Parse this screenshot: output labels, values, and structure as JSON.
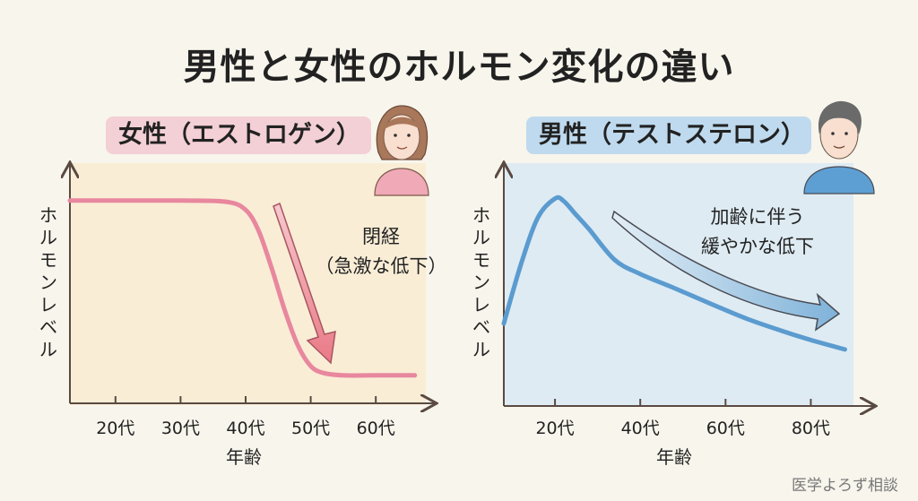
{
  "title": "男性と女性のホルモン変化の違い",
  "credit": "医学よろず相談",
  "colors": {
    "background": "#f8f5ec",
    "female_panel": "#f9edd6",
    "female_line": "#e8879e",
    "female_label": "#f2d0d5",
    "male_panel": "#deebf3",
    "male_line": "#5b9bcf",
    "male_label": "#bfdaee"
  },
  "icons": {
    "female": "woman-avatar-icon",
    "male": "man-avatar-icon"
  },
  "chart_data": [
    {
      "type": "line",
      "title": "女性（エストロゲン）",
      "xlabel": "年齢",
      "ylabel": "ホルモンレベル",
      "tick_labels": [
        "20代",
        "30代",
        "40代",
        "50代",
        "60代"
      ],
      "tick_ages": [
        20,
        30,
        40,
        50,
        60
      ],
      "xlim": [
        13,
        67
      ],
      "ylim": [
        0,
        100
      ],
      "grid": false,
      "annotation": [
        "閉経",
        "（急激な低下）"
      ],
      "x": [
        13,
        20,
        30,
        37,
        40,
        42,
        44,
        46,
        48,
        50,
        52,
        55,
        60,
        66
      ],
      "y": [
        87,
        87,
        87,
        86.5,
        83,
        74,
        58,
        40,
        25,
        16,
        13,
        12,
        12,
        12
      ]
    },
    {
      "type": "line",
      "title": "男性（テストステロン）",
      "xlabel": "年齢",
      "ylabel": "ホルモンレベル",
      "tick_labels": [
        "20代",
        "40代",
        "60代",
        "80代"
      ],
      "tick_ages": [
        20,
        40,
        60,
        80
      ],
      "xlim": [
        8,
        90
      ],
      "ylim": [
        0,
        100
      ],
      "grid": false,
      "annotation": [
        "加齢に伴う",
        "緩やかな低下"
      ],
      "x": [
        8,
        12,
        16,
        20,
        22,
        25,
        28,
        34,
        40,
        48,
        57,
        65,
        73,
        80,
        88
      ],
      "y": [
        35,
        60,
        80,
        88,
        87,
        81,
        75,
        62,
        56,
        50,
        43,
        37,
        32,
        28,
        24
      ]
    }
  ]
}
